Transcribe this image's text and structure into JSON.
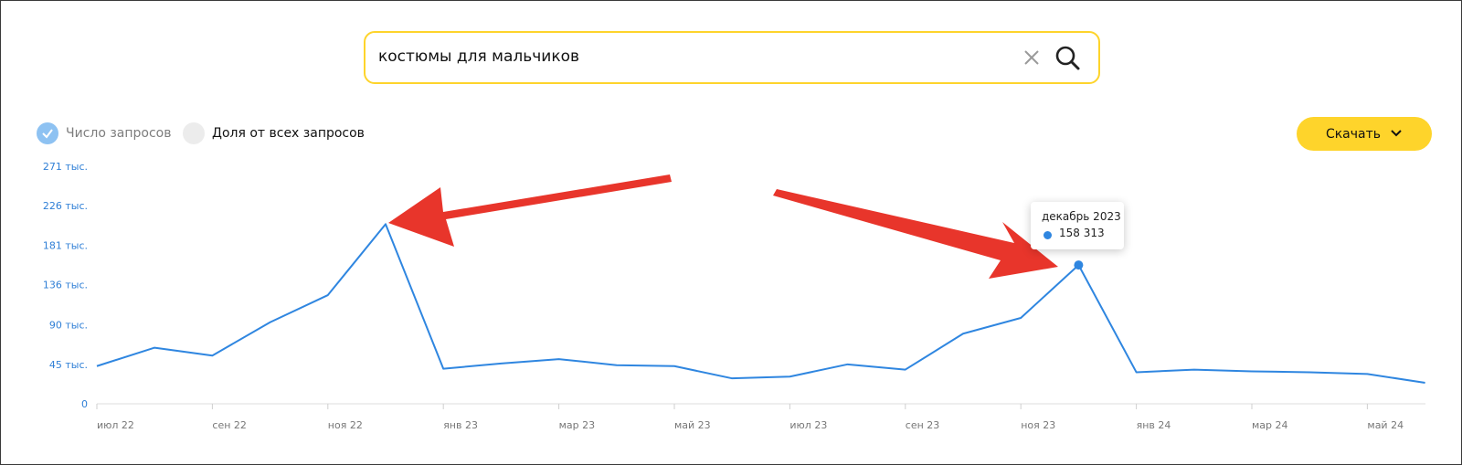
{
  "search": {
    "query": "костюмы для мальчиков"
  },
  "controls": {
    "count_label": "Число запросов",
    "share_label": "Доля от всех запросов",
    "download_label": "Скачать"
  },
  "tooltip": {
    "period": "декабрь 2023",
    "value": "158 313"
  },
  "colors": {
    "accent": "#fed42b",
    "line": "#2f86e0",
    "axis_label": "#2f7fd6",
    "arrow": "#e8352b"
  },
  "chart_data": {
    "type": "line",
    "title": "",
    "xlabel": "",
    "ylabel": "",
    "ylim": [
      0,
      271000
    ],
    "y_tick_labels": [
      "0",
      "45 тыс.",
      "90 тыс.",
      "136 тыс.",
      "181 тыс.",
      "226 тыс.",
      "271 тыс."
    ],
    "y_tick_values": [
      0,
      45000,
      90000,
      136000,
      181000,
      226000,
      271000
    ],
    "x_tick_labels": [
      "июл 22",
      "сен 22",
      "ноя 22",
      "янв 23",
      "мар 23",
      "май 23",
      "июл 23",
      "сен 23",
      "ноя 23",
      "янв 24",
      "мар 24",
      "май 24"
    ],
    "x": [
      "2022-07",
      "2022-08",
      "2022-09",
      "2022-10",
      "2022-11",
      "2022-12",
      "2023-01",
      "2023-02",
      "2023-03",
      "2023-04",
      "2023-05",
      "2023-06",
      "2023-07",
      "2023-08",
      "2023-09",
      "2023-10",
      "2023-11",
      "2023-12",
      "2024-01",
      "2024-02",
      "2024-03",
      "2024-04",
      "2024-05",
      "2024-06"
    ],
    "series": [
      {
        "values": [
          43000,
          64000,
          55000,
          93000,
          124000,
          205000,
          40000,
          46000,
          51000,
          44000,
          43000,
          29000,
          31000,
          45000,
          39000,
          80000,
          98000,
          158313,
          36000,
          39000,
          37000,
          36000,
          34000,
          24000
        ]
      }
    ],
    "highlighted_point": "2023-12",
    "grid": false,
    "legend": "none"
  }
}
